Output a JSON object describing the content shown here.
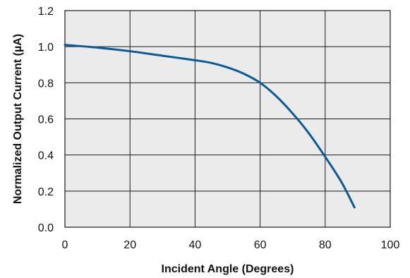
{
  "chart_data": {
    "type": "line",
    "title": "",
    "xlabel": "Incident Angle (Degrees)",
    "ylabel": "Normalized Output Current (µA)",
    "xlim": [
      0,
      100
    ],
    "ylim": [
      0,
      1.2
    ],
    "x_ticks": [
      0,
      20,
      40,
      60,
      80,
      100
    ],
    "y_ticks": [
      0,
      0.2,
      0.4,
      0.6,
      0.8,
      1.0,
      1.2
    ],
    "x_tick_labels": [
      "0",
      "20",
      "40",
      "60",
      "80",
      "100"
    ],
    "y_tick_labels": [
      "0.0",
      "0.2",
      "0.4",
      "0.6",
      "0.8",
      "1.0",
      "1.2"
    ],
    "grid": true,
    "plot_background": "#ebebeb",
    "series": [
      {
        "color": "#0a5a96",
        "x": [
          0,
          10,
          20,
          30,
          40,
          45,
          50,
          55,
          60,
          65,
          70,
          75,
          80,
          85,
          89
        ],
        "y": [
          1.01,
          0.995,
          0.975,
          0.95,
          0.925,
          0.91,
          0.885,
          0.85,
          0.8,
          0.725,
          0.63,
          0.52,
          0.39,
          0.25,
          0.11
        ]
      }
    ]
  }
}
